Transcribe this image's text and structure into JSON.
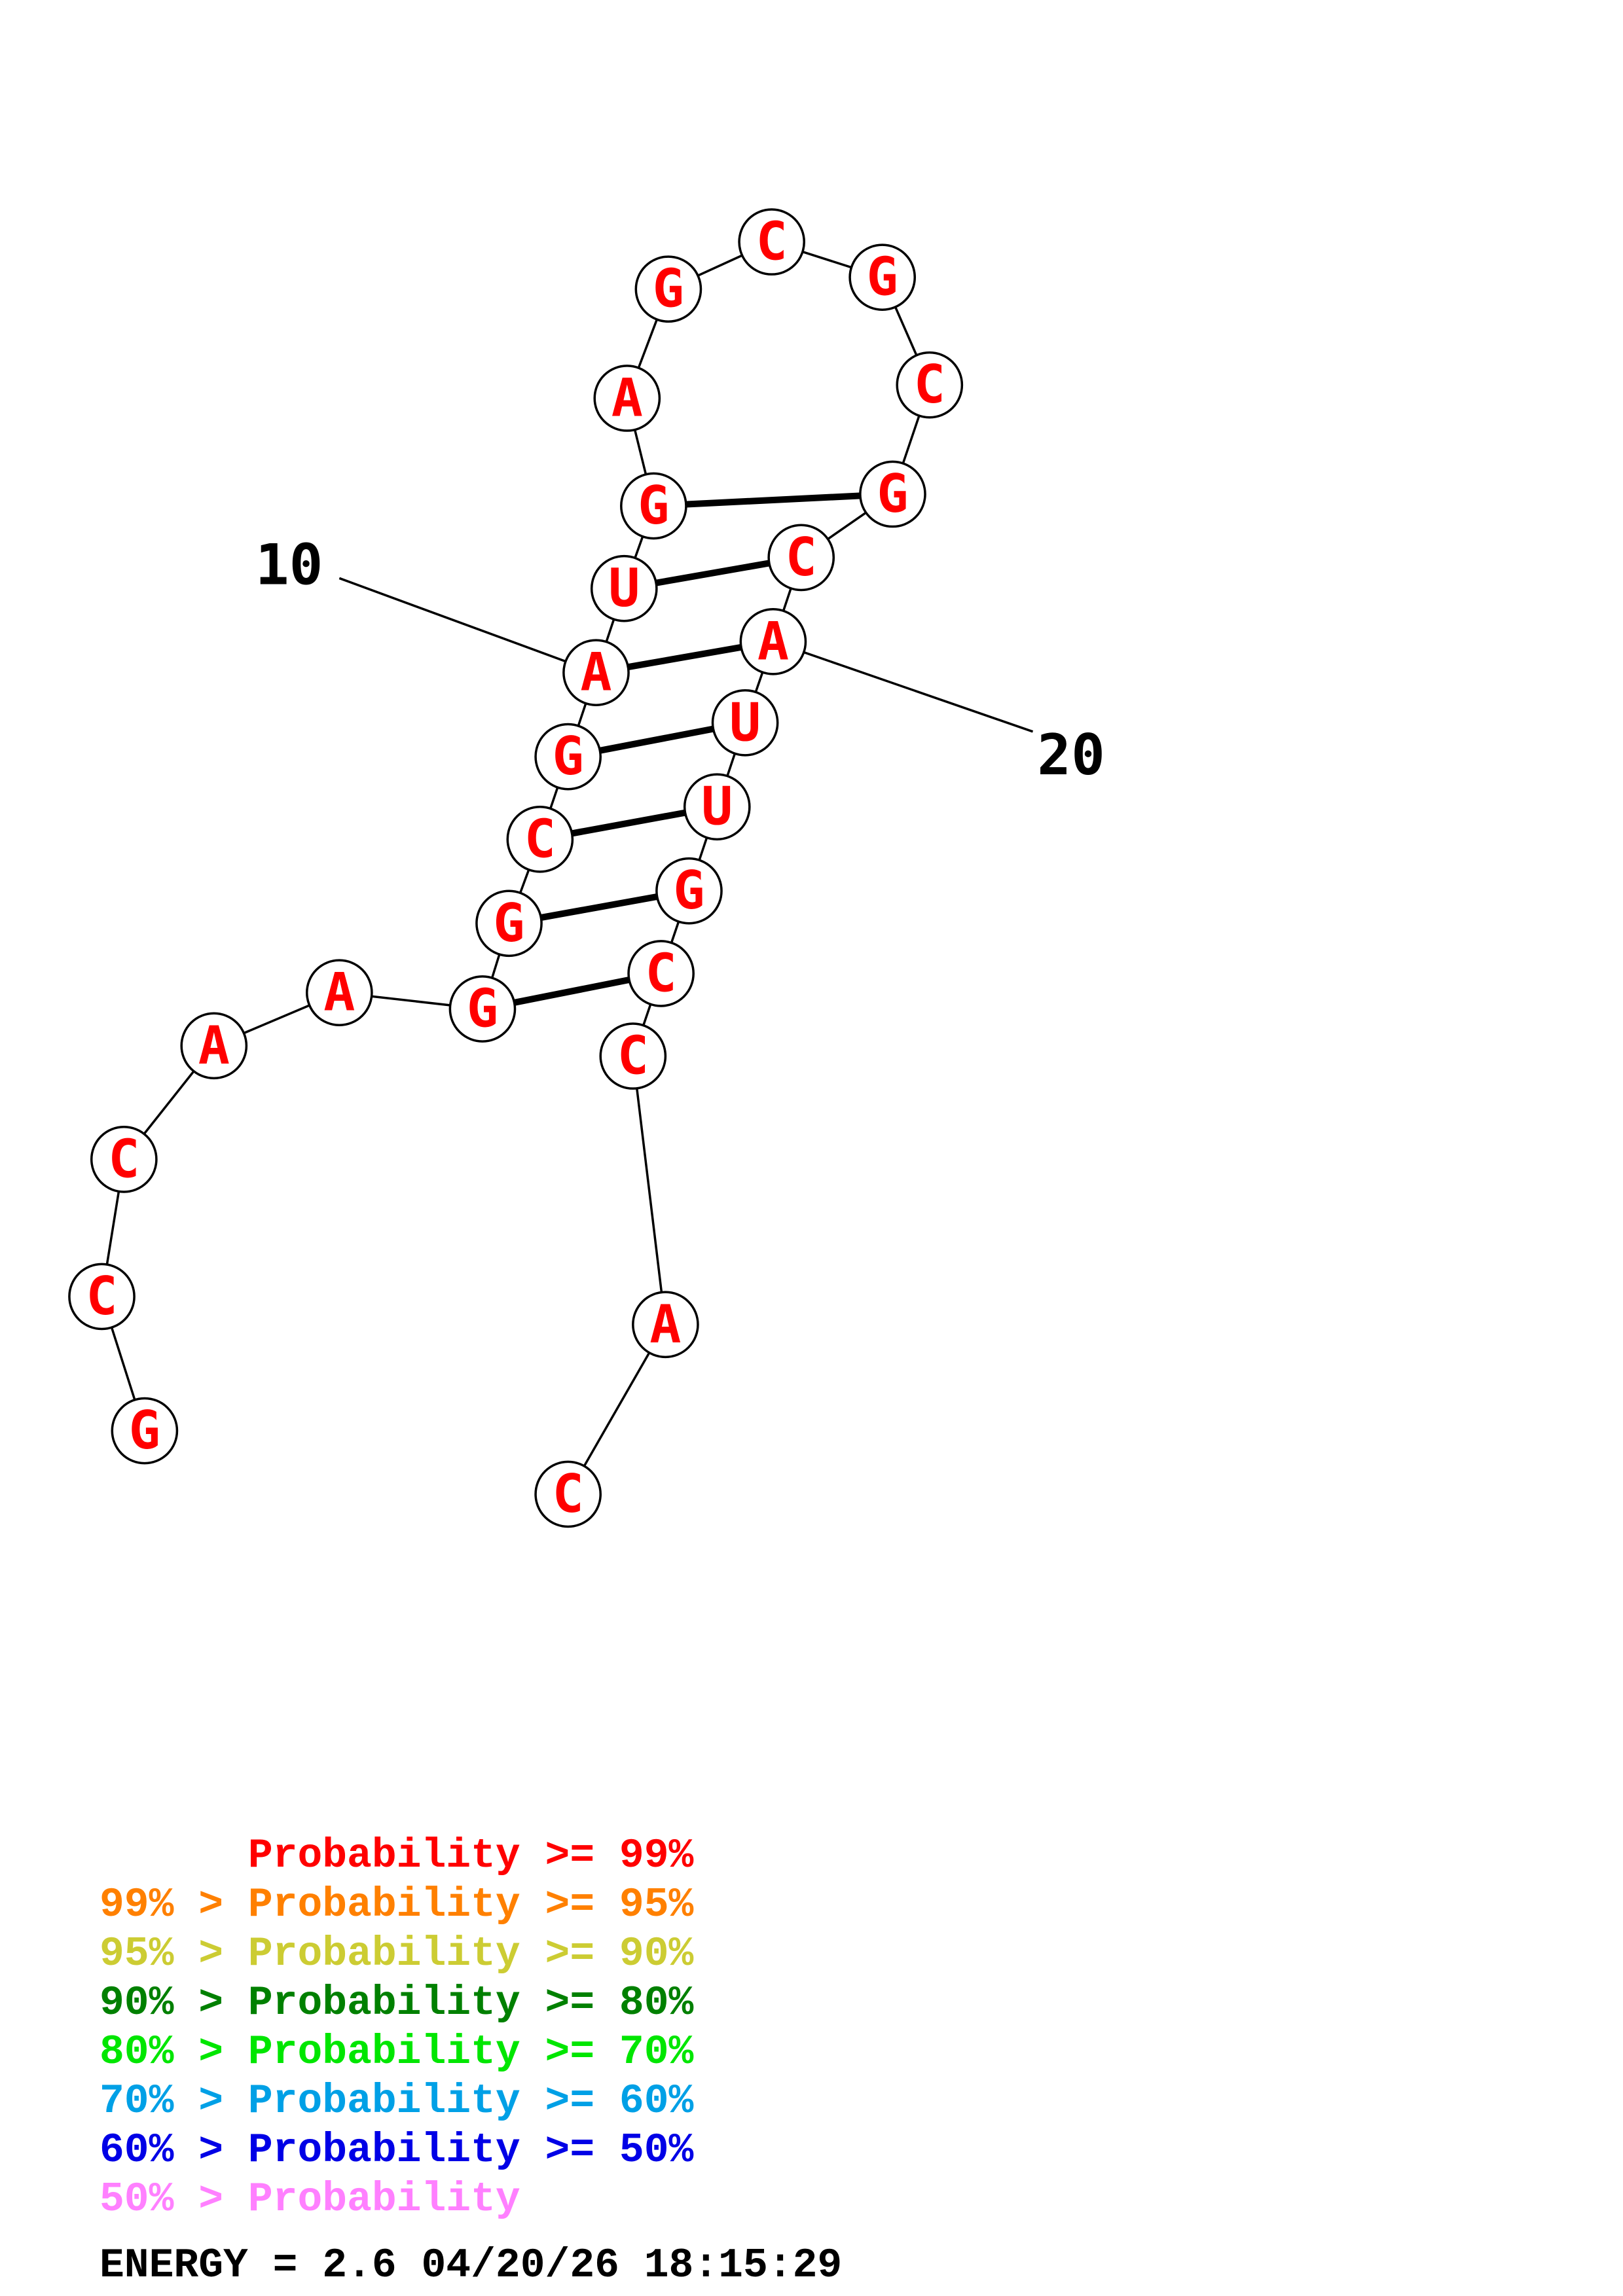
{
  "structure": {
    "sequence": [
      "G",
      "C",
      "C",
      "A",
      "A",
      "G",
      "G",
      "C",
      "G",
      "A",
      "U",
      "G",
      "A",
      "G",
      "C",
      "G",
      "C",
      "G",
      "C",
      "A",
      "U",
      "U",
      "G",
      "C",
      "C",
      "A",
      "C"
    ],
    "pairs": [
      [
        6,
        24
      ],
      [
        7,
        23
      ],
      [
        8,
        22
      ],
      [
        9,
        21
      ],
      [
        10,
        20
      ],
      [
        11,
        19
      ],
      [
        12,
        18
      ]
    ],
    "index_labels": [
      {
        "number": 10,
        "text": "10"
      },
      {
        "number": 20,
        "text": "20"
      }
    ],
    "base_color": "#ff0000"
  },
  "legend": {
    "lines": [
      {
        "text": "      Probability >= 99%",
        "color": "#ff0000"
      },
      {
        "text": "99% > Probability >= 95%",
        "color": "#ff8000"
      },
      {
        "text": "95% > Probability >= 90%",
        "color": "#cccc33"
      },
      {
        "text": "90% > Probability >= 80%",
        "color": "#008000"
      },
      {
        "text": "80% > Probability >= 70%",
        "color": "#00e600"
      },
      {
        "text": "70% > Probability >= 60%",
        "color": "#00a0e6"
      },
      {
        "text": "60% > Probability >= 50%",
        "color": "#0000e6"
      },
      {
        "text": "50% > Probability",
        "color": "#ff80ff"
      }
    ],
    "energy_line": "ENERGY = 2.6  04/20/26 18:15:29"
  }
}
